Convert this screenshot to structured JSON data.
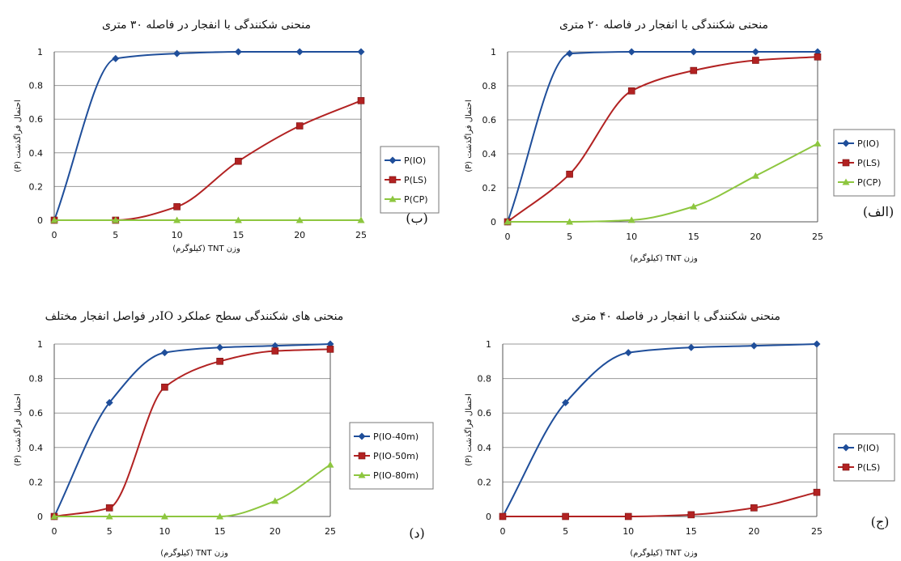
{
  "colors": {
    "io": "#1f4e9a",
    "ls": "#b22222",
    "cp": "#8dc63f"
  },
  "chart_data": [
    {
      "id": "panel-b",
      "type": "line",
      "title": "منحنی شکنندگی با انفجار در فاصله ۳۰ متری",
      "xlabel": "وزن TNT (کیلوگرم)",
      "ylabel": "احتمال فراگذشت (P)",
      "panel_label": "(ب)",
      "x": [
        0,
        5,
        10,
        15,
        20,
        25
      ],
      "xticks": [
        "0",
        "5",
        "10",
        "15",
        "20",
        "25"
      ],
      "yticks": [
        "0",
        "0.2",
        "0.4",
        "0.6",
        "0.8",
        "1"
      ],
      "xlim": [
        0,
        25
      ],
      "ylim": [
        0,
        1
      ],
      "grid": true,
      "legend": "right",
      "series": [
        {
          "name": "P(IO)",
          "values": [
            0,
            0.96,
            0.99,
            1.0,
            1.0,
            1.0
          ],
          "color": "#1f4e9a",
          "marker": "diamond"
        },
        {
          "name": "P(LS)",
          "values": [
            0,
            0,
            0.08,
            0.35,
            0.56,
            0.71
          ],
          "color": "#b22222",
          "marker": "square"
        },
        {
          "name": "P(CP)",
          "values": [
            0,
            0,
            0,
            0,
            0,
            0
          ],
          "color": "#8dc63f",
          "marker": "triangle"
        }
      ]
    },
    {
      "id": "panel-alef",
      "type": "line",
      "title": "منحنی شکنندگی با انفجار در فاصله ۲۰ متری",
      "xlabel": "وزن TNT (کیلوگرم)",
      "ylabel": "احتمال فراگذشت (P)",
      "panel_label": "(الف)",
      "x": [
        0,
        5,
        10,
        15,
        20,
        25
      ],
      "xticks": [
        "0",
        "5",
        "10",
        "15",
        "20",
        "25"
      ],
      "yticks": [
        "0",
        "0.2",
        "0.4",
        "0.6",
        "0.8",
        "1"
      ],
      "xlim": [
        0,
        25
      ],
      "ylim": [
        0,
        1
      ],
      "grid": true,
      "legend": "right",
      "series": [
        {
          "name": "P(IO)",
          "values": [
            0,
            0.99,
            1.0,
            1.0,
            1.0,
            1.0
          ],
          "color": "#1f4e9a",
          "marker": "diamond"
        },
        {
          "name": "P(LS)",
          "values": [
            0,
            0.28,
            0.77,
            0.89,
            0.95,
            0.97
          ],
          "color": "#b22222",
          "marker": "square"
        },
        {
          "name": "P(CP)",
          "values": [
            0,
            0,
            0.01,
            0.09,
            0.27,
            0.46
          ],
          "color": "#8dc63f",
          "marker": "triangle"
        }
      ]
    },
    {
      "id": "panel-dal",
      "type": "line",
      "title": "منحنی های شکنندگی سطح عملکرد IOدر فواصل انفجار مختلف",
      "xlabel": "وزن TNT (کیلوگرم)",
      "ylabel": "احتمال فراگذشت (P)",
      "panel_label": "(د)",
      "x": [
        0,
        5,
        10,
        15,
        20,
        25
      ],
      "xticks": [
        "0",
        "5",
        "10",
        "15",
        "20",
        "25"
      ],
      "yticks": [
        "0",
        "0.2",
        "0.4",
        "0.6",
        "0.8",
        "1"
      ],
      "xlim": [
        0,
        25
      ],
      "ylim": [
        0,
        1
      ],
      "grid": true,
      "legend": "right",
      "series": [
        {
          "name": "P(IO-40m)",
          "values": [
            0,
            0.66,
            0.95,
            0.98,
            0.99,
            1.0
          ],
          "color": "#1f4e9a",
          "marker": "diamond"
        },
        {
          "name": "P(IO-50m)",
          "values": [
            0,
            0.05,
            0.75,
            0.9,
            0.96,
            0.97
          ],
          "color": "#b22222",
          "marker": "square"
        },
        {
          "name": "P(IO-80m)",
          "values": [
            0,
            0,
            0,
            0,
            0.09,
            0.3
          ],
          "color": "#8dc63f",
          "marker": "triangle"
        }
      ]
    },
    {
      "id": "panel-jim",
      "type": "line",
      "title": "منحنی شکنندگی با انفجار در فاصله ۴۰ متری",
      "xlabel": "وزن TNT (کیلوگرم)",
      "ylabel": "احتمال فراگذشت (P)",
      "panel_label": "(ج)",
      "x": [
        0,
        5,
        10,
        15,
        20,
        25
      ],
      "xticks": [
        "0",
        "5",
        "10",
        "15",
        "20",
        "25"
      ],
      "yticks": [
        "0",
        "0.2",
        "0.4",
        "0.6",
        "0.8",
        "1"
      ],
      "xlim": [
        0,
        25
      ],
      "ylim": [
        0,
        1
      ],
      "grid": true,
      "legend": "right",
      "series": [
        {
          "name": "P(IO)",
          "values": [
            0,
            0.66,
            0.95,
            0.98,
            0.99,
            1.0
          ],
          "color": "#1f4e9a",
          "marker": "diamond"
        },
        {
          "name": "P(LS)",
          "values": [
            0,
            0,
            0,
            0.01,
            0.05,
            0.14
          ],
          "color": "#b22222",
          "marker": "square"
        }
      ]
    }
  ]
}
